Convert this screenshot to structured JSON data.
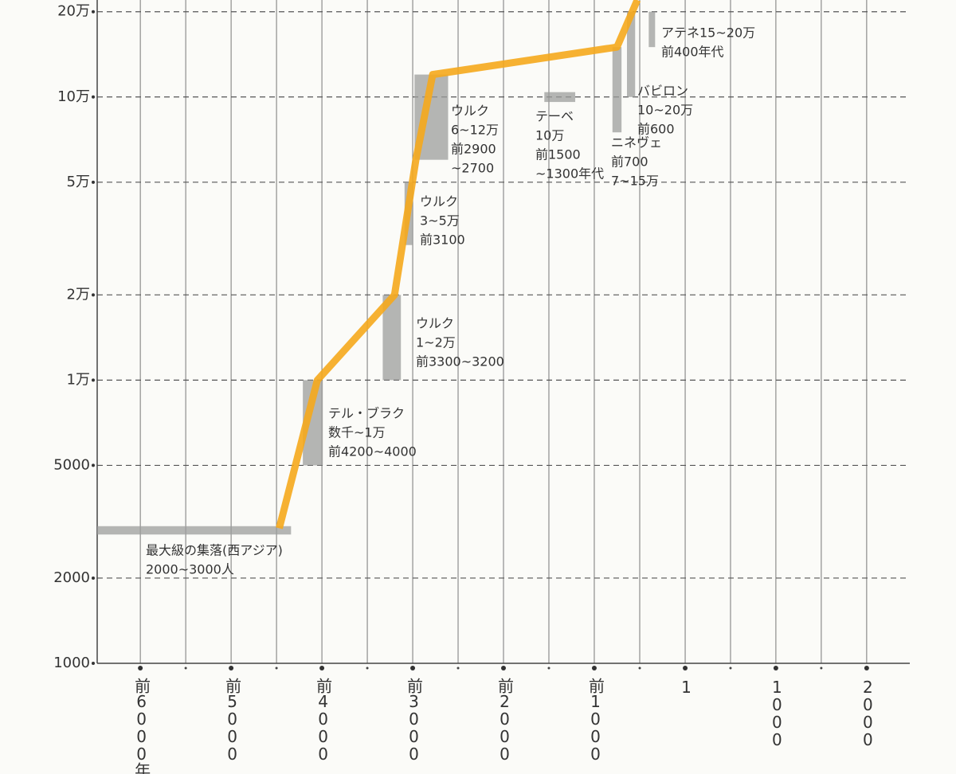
{
  "chart_data": {
    "type": "line",
    "log_y": true,
    "grid": true,
    "xlim": [
      -6475,
      2475
    ],
    "ylim": [
      1000,
      220000
    ],
    "xticks": [
      {
        "value": -6000,
        "label": "前6000年"
      },
      {
        "value": -5000,
        "label": "前5000"
      },
      {
        "value": -4000,
        "label": "前4000"
      },
      {
        "value": -3000,
        "label": "前3000"
      },
      {
        "value": -2000,
        "label": "前2000"
      },
      {
        "value": -1000,
        "label": "前1000"
      },
      1,
      1000,
      2000
    ],
    "yticks": [
      1000,
      2000,
      5000,
      {
        "value": 10000,
        "label": "1万"
      },
      {
        "value": 20000,
        "label": "2万"
      },
      {
        "value": 50000,
        "label": "5万"
      },
      {
        "value": 100000,
        "label": "10万"
      },
      {
        "value": 200000,
        "label": "20万"
      }
    ],
    "series": [
      {
        "color": "#f5a91c",
        "x": [
          -4470,
          -4050,
          -3200,
          -2965,
          -2780,
          -750,
          -526
        ],
        "values": [
          3000,
          10000,
          20000,
          60000,
          120000,
          150000,
          220000
        ]
      }
    ],
    "range_color": "#9c9e9c",
    "ranges": [
      {
        "x": [
          -6475,
          -4340
        ],
        "y": [
          2850,
          3050
        ],
        "lines": [
          "最大級の集落(西アジア)",
          "2000~3000人"
        ]
      },
      {
        "x": [
          -4210,
          -3990
        ],
        "y": [
          5000,
          10000
        ],
        "lines": [
          "テル・ブラク",
          "数千~1万",
          "前4200~4000"
        ]
      },
      {
        "x": [
          -3330,
          -3130
        ],
        "y": [
          10000,
          20000
        ],
        "lines": [
          "ウルク",
          "1~2万",
          "前3300~3200"
        ]
      },
      {
        "x": [
          -3090,
          -3000
        ],
        "y": [
          30000,
          50000
        ],
        "lines": [
          "ウルク",
          "3~5万",
          "前3100"
        ]
      },
      {
        "x": [
          -2980,
          -2610
        ],
        "y": [
          60000,
          120000
        ],
        "lines": [
          "ウルク",
          "6~12万",
          "前2900",
          "~2700"
        ]
      },
      {
        "x": [
          -1550,
          -1210
        ],
        "y": [
          96000,
          104000
        ],
        "lines": [
          "テーベ",
          "10万",
          "前1500",
          "~1300年代"
        ]
      },
      {
        "x": [
          -800,
          -700
        ],
        "y": [
          75000,
          150000
        ],
        "lines": [
          "ニネヴェ",
          "前700",
          "7~15万"
        ]
      },
      {
        "x": [
          -640,
          -550
        ],
        "y": [
          100000,
          200000
        ],
        "lines": [
          "バビロン",
          "10~20万",
          "前600"
        ]
      },
      {
        "x": [
          -400,
          -330
        ],
        "y": [
          150000,
          200000
        ],
        "lines": [
          "アテネ15~20万",
          "前400年代"
        ]
      }
    ]
  }
}
